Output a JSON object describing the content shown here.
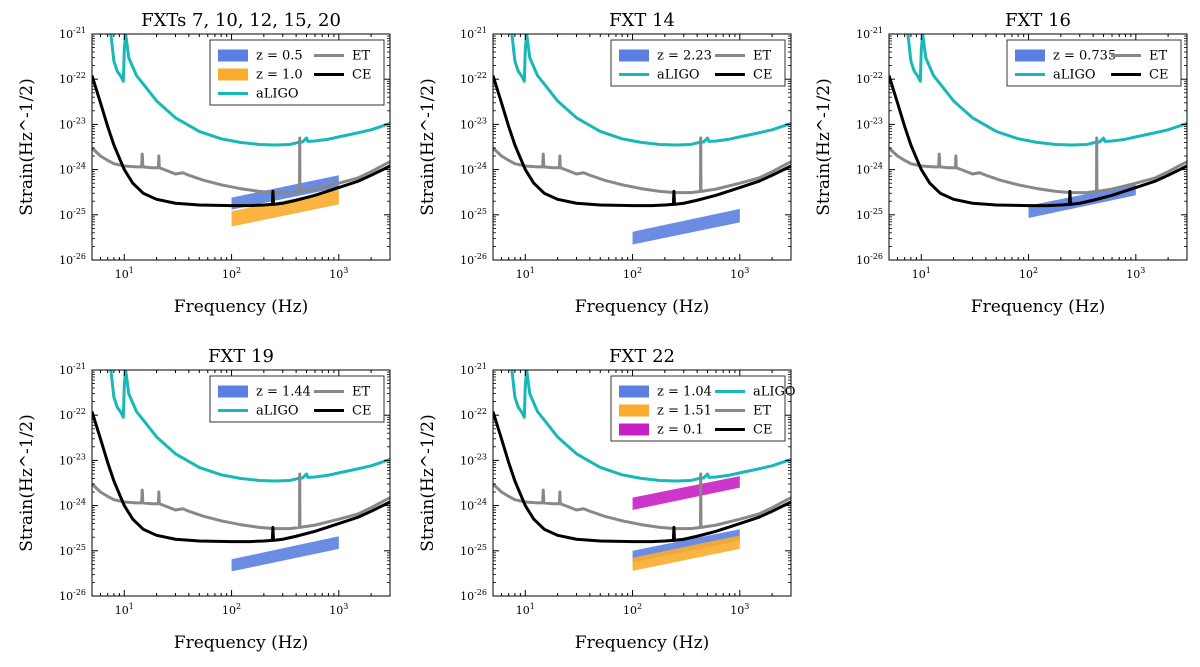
{
  "figure": {
    "xlabel": "Frequency (Hz)",
    "ylabel": "Strain(Hz^-1/2)"
  },
  "colors": {
    "aLIGO": "#19b8b8",
    "ET": "#888888",
    "CE": "#000000",
    "blue": "#5b7fe0",
    "orange": "#f9ac2e",
    "magenta": "#c920c4"
  },
  "chart_data": [
    {
      "type": "line",
      "title": "FXTs 7, 10, 12, 15, 20",
      "xlabel": "Frequency (Hz)",
      "ylabel": "Strain(Hz^-1/2)",
      "xscale": "log",
      "yscale": "log",
      "xlim": [
        5,
        3000
      ],
      "ylim": [
        1e-26,
        1e-21
      ],
      "x_ticks": [
        {
          "value": 10,
          "label": "10^1"
        },
        {
          "value": 100,
          "label": "10^2"
        },
        {
          "value": 1000,
          "label": "10^3"
        }
      ],
      "y_ticks": [
        {
          "value": 1e-21,
          "label": "10^-21"
        },
        {
          "value": 1e-22,
          "label": "10^-22"
        },
        {
          "value": 1e-23,
          "label": "10^-23"
        },
        {
          "value": 1e-24,
          "label": "10^-24"
        },
        {
          "value": 1e-25,
          "label": "10^-25"
        },
        {
          "value": 1e-26,
          "label": "10^-26"
        }
      ],
      "legend_columns": 2,
      "legend": [
        {
          "label": "z = 0.5",
          "kind": "patch",
          "color": "blue"
        },
        {
          "label": "ET",
          "kind": "line",
          "color": "ET"
        },
        {
          "label": "z = 1.0",
          "kind": "patch",
          "color": "orange"
        },
        {
          "label": "CE",
          "kind": "line",
          "color": "CE"
        },
        {
          "label": "aLIGO",
          "kind": "line",
          "color": "aLIGO"
        }
      ],
      "bands": [
        {
          "name": "z = 0.5",
          "color": "blue",
          "f": [
            100,
            1000
          ],
          "lower": [
            1.3e-25,
            4e-25
          ],
          "upper": [
            2.4e-25,
            7.5e-25
          ]
        },
        {
          "name": "z = 1.0",
          "color": "orange",
          "f": [
            100,
            1000
          ],
          "lower": [
            5.5e-26,
            1.7e-25
          ],
          "upper": [
            1.2e-25,
            3.6e-25
          ]
        }
      ]
    },
    {
      "type": "line",
      "title": "FXT 14",
      "xlabel": "Frequency (Hz)",
      "ylabel": "Strain(Hz^-1/2)",
      "xscale": "log",
      "yscale": "log",
      "xlim": [
        5,
        3000
      ],
      "ylim": [
        1e-26,
        1e-21
      ],
      "x_ticks": [
        {
          "value": 10,
          "label": "10^1"
        },
        {
          "value": 100,
          "label": "10^2"
        },
        {
          "value": 1000,
          "label": "10^3"
        }
      ],
      "y_ticks": [
        {
          "value": 1e-21,
          "label": "10^-21"
        },
        {
          "value": 1e-22,
          "label": "10^-22"
        },
        {
          "value": 1e-23,
          "label": "10^-23"
        },
        {
          "value": 1e-24,
          "label": "10^-24"
        },
        {
          "value": 1e-25,
          "label": "10^-25"
        },
        {
          "value": 1e-26,
          "label": "10^-26"
        }
      ],
      "legend_columns": 2,
      "legend": [
        {
          "label": "z = 2.23",
          "kind": "patch",
          "color": "blue"
        },
        {
          "label": "ET",
          "kind": "line",
          "color": "ET"
        },
        {
          "label": "aLIGO",
          "kind": "line",
          "color": "aLIGO"
        },
        {
          "label": "CE",
          "kind": "line",
          "color": "CE"
        }
      ],
      "bands": [
        {
          "name": "z = 2.23",
          "color": "blue",
          "f": [
            100,
            1000
          ],
          "lower": [
            2.2e-26,
            6.8e-26
          ],
          "upper": [
            4.2e-26,
            1.35e-25
          ]
        }
      ]
    },
    {
      "type": "line",
      "title": "FXT 16",
      "xlabel": "Frequency (Hz)",
      "ylabel": "Strain(Hz^-1/2)",
      "xscale": "log",
      "yscale": "log",
      "xlim": [
        5,
        3000
      ],
      "ylim": [
        1e-26,
        1e-21
      ],
      "x_ticks": [
        {
          "value": 10,
          "label": "10^1"
        },
        {
          "value": 100,
          "label": "10^2"
        },
        {
          "value": 1000,
          "label": "10^3"
        }
      ],
      "y_ticks": [
        {
          "value": 1e-21,
          "label": "10^-21"
        },
        {
          "value": 1e-22,
          "label": "10^-22"
        },
        {
          "value": 1e-23,
          "label": "10^-23"
        },
        {
          "value": 1e-24,
          "label": "10^-24"
        },
        {
          "value": 1e-25,
          "label": "10^-25"
        },
        {
          "value": 1e-26,
          "label": "10^-26"
        }
      ],
      "legend_columns": 2,
      "legend": [
        {
          "label": "z = 0.735",
          "kind": "patch",
          "color": "blue"
        },
        {
          "label": "ET",
          "kind": "line",
          "color": "ET"
        },
        {
          "label": "aLIGO",
          "kind": "line",
          "color": "aLIGO"
        },
        {
          "label": "CE",
          "kind": "line",
          "color": "CE"
        }
      ],
      "bands": [
        {
          "name": "z = 0.735",
          "color": "blue",
          "f": [
            100,
            1000
          ],
          "lower": [
            8.5e-26,
            2.7e-25
          ],
          "upper": [
            1.6e-25,
            4.8e-25
          ]
        }
      ]
    },
    {
      "type": "line",
      "title": "FXT 19",
      "xlabel": "Frequency (Hz)",
      "ylabel": "Strain(Hz^-1/2)",
      "xscale": "log",
      "yscale": "log",
      "xlim": [
        5,
        3000
      ],
      "ylim": [
        1e-26,
        1e-21
      ],
      "x_ticks": [
        {
          "value": 10,
          "label": "10^1"
        },
        {
          "value": 100,
          "label": "10^2"
        },
        {
          "value": 1000,
          "label": "10^3"
        }
      ],
      "y_ticks": [
        {
          "value": 1e-21,
          "label": "10^-21"
        },
        {
          "value": 1e-22,
          "label": "10^-22"
        },
        {
          "value": 1e-23,
          "label": "10^-23"
        },
        {
          "value": 1e-24,
          "label": "10^-24"
        },
        {
          "value": 1e-25,
          "label": "10^-25"
        },
        {
          "value": 1e-26,
          "label": "10^-26"
        }
      ],
      "legend_columns": 2,
      "legend": [
        {
          "label": "z = 1.44",
          "kind": "patch",
          "color": "blue"
        },
        {
          "label": "ET",
          "kind": "line",
          "color": "ET"
        },
        {
          "label": "aLIGO",
          "kind": "line",
          "color": "aLIGO"
        },
        {
          "label": "CE",
          "kind": "line",
          "color": "CE"
        }
      ],
      "bands": [
        {
          "name": "z = 1.44",
          "color": "blue",
          "f": [
            100,
            1000
          ],
          "lower": [
            3.5e-26,
            1.1e-25
          ],
          "upper": [
            6.5e-26,
            2.1e-25
          ]
        }
      ]
    },
    {
      "type": "line",
      "title": "FXT 22",
      "xlabel": "Frequency (Hz)",
      "ylabel": "Strain(Hz^-1/2)",
      "xscale": "log",
      "yscale": "log",
      "xlim": [
        5,
        3000
      ],
      "ylim": [
        1e-26,
        1e-21
      ],
      "x_ticks": [
        {
          "value": 10,
          "label": "10^1"
        },
        {
          "value": 100,
          "label": "10^2"
        },
        {
          "value": 1000,
          "label": "10^3"
        }
      ],
      "y_ticks": [
        {
          "value": 1e-21,
          "label": "10^-21"
        },
        {
          "value": 1e-22,
          "label": "10^-22"
        },
        {
          "value": 1e-23,
          "label": "10^-23"
        },
        {
          "value": 1e-24,
          "label": "10^-24"
        },
        {
          "value": 1e-25,
          "label": "10^-25"
        },
        {
          "value": 1e-26,
          "label": "10^-26"
        }
      ],
      "legend_columns": 2,
      "legend": [
        {
          "label": "z = 1.04",
          "kind": "patch",
          "color": "blue"
        },
        {
          "label": "aLIGO",
          "kind": "line",
          "color": "aLIGO"
        },
        {
          "label": "z = 1.51",
          "kind": "patch",
          "color": "orange"
        },
        {
          "label": "ET",
          "kind": "line",
          "color": "ET"
        },
        {
          "label": "z = 0.1",
          "kind": "patch",
          "color": "magenta"
        },
        {
          "label": "CE",
          "kind": "line",
          "color": "CE"
        }
      ],
      "bands": [
        {
          "name": "z = 1.04",
          "color": "blue",
          "f": [
            100,
            1000
          ],
          "lower": [
            5.5e-26,
            1.7e-25
          ],
          "upper": [
            1e-25,
            3e-25
          ]
        },
        {
          "name": "z = 1.51",
          "color": "orange",
          "f": [
            100,
            1000
          ],
          "lower": [
            3.6e-26,
            1.1e-25
          ],
          "upper": [
            7e-26,
            2.2e-25
          ]
        },
        {
          "name": "z = 0.1",
          "color": "magenta",
          "f": [
            100,
            1000
          ],
          "lower": [
            8e-25,
            2.5e-24
          ],
          "upper": [
            1.5e-24,
            4.5e-24
          ]
        }
      ]
    }
  ],
  "curves": {
    "aLIGO": {
      "name": "aLIGO",
      "color": "aLIGO",
      "points": [
        [
          7.5,
          1e-21
        ],
        [
          8,
          2.5e-22
        ],
        [
          8.6,
          1.5e-22
        ],
        [
          9.2,
          1.2e-22
        ],
        [
          9.8,
          9e-23
        ],
        [
          10,
          4.5e-22
        ],
        [
          10.3,
          1e-21
        ],
        [
          11,
          3e-22
        ],
        [
          13,
          1.2e-22
        ],
        [
          16,
          6.5e-23
        ],
        [
          20,
          3.3e-23
        ],
        [
          30,
          1.4e-23
        ],
        [
          50,
          7e-24
        ],
        [
          80,
          4.8e-24
        ],
        [
          120,
          4e-24
        ],
        [
          180,
          3.6e-24
        ],
        [
          250,
          3.5e-24
        ],
        [
          350,
          3.6e-24
        ],
        [
          420,
          4e-24
        ],
        [
          460,
          4.1e-24
        ],
        [
          500,
          5e-24
        ],
        [
          515,
          4.2e-24
        ],
        [
          600,
          4.3e-24
        ],
        [
          800,
          4.7e-24
        ],
        [
          1000,
          5.3e-24
        ],
        [
          1500,
          6.5e-24
        ],
        [
          2000,
          7.6e-24
        ],
        [
          3000,
          1.05e-23
        ]
      ]
    },
    "ET": {
      "name": "ET",
      "color": "ET",
      "points": [
        [
          5,
          3e-24
        ],
        [
          6,
          2e-24
        ],
        [
          7,
          1.6e-24
        ],
        [
          8,
          1.35e-24
        ],
        [
          10,
          1.2e-24
        ],
        [
          13,
          1.15e-24
        ],
        [
          14.5,
          1.15e-24
        ],
        [
          14.7,
          2.2e-24
        ],
        [
          14.9,
          1.15e-24
        ],
        [
          18,
          1.1e-24
        ],
        [
          20.8,
          1.1e-24
        ],
        [
          21,
          2e-24
        ],
        [
          21.2,
          1.1e-24
        ],
        [
          25,
          9.5e-25
        ],
        [
          30,
          8e-25
        ],
        [
          35,
          8.5e-25
        ],
        [
          40,
          7.5e-25
        ],
        [
          55,
          5.8e-25
        ],
        [
          80,
          4.6e-25
        ],
        [
          120,
          3.8e-25
        ],
        [
          180,
          3.3e-25
        ],
        [
          250,
          3.1e-25
        ],
        [
          350,
          3.1e-25
        ],
        [
          430,
          3.3e-25
        ],
        [
          432,
          5e-24
        ],
        [
          434,
          3.3e-25
        ],
        [
          600,
          3.7e-25
        ],
        [
          1000,
          5e-25
        ],
        [
          1500,
          6.5e-25
        ],
        [
          2000,
          9e-25
        ],
        [
          3000,
          1.5e-24
        ]
      ]
    },
    "CE": {
      "name": "CE",
      "color": "CE",
      "points": [
        [
          5,
          1.2e-22
        ],
        [
          6,
          3e-23
        ],
        [
          7,
          9e-24
        ],
        [
          8,
          3.5e-24
        ],
        [
          9,
          1.8e-24
        ],
        [
          10,
          1e-24
        ],
        [
          12,
          5e-25
        ],
        [
          15,
          3e-25
        ],
        [
          20,
          2.2e-25
        ],
        [
          30,
          1.8e-25
        ],
        [
          50,
          1.65e-25
        ],
        [
          100,
          1.6e-25
        ],
        [
          150,
          1.6e-25
        ],
        [
          200,
          1.65e-25
        ],
        [
          240,
          1.7e-25
        ],
        [
          243,
          3.3e-25
        ],
        [
          246,
          1.7e-25
        ],
        [
          300,
          1.8e-25
        ],
        [
          400,
          2.1e-25
        ],
        [
          600,
          2.7e-25
        ],
        [
          1000,
          4e-25
        ],
        [
          1500,
          5.5e-25
        ],
        [
          2000,
          7.5e-25
        ],
        [
          3000,
          1.2e-24
        ]
      ]
    }
  }
}
